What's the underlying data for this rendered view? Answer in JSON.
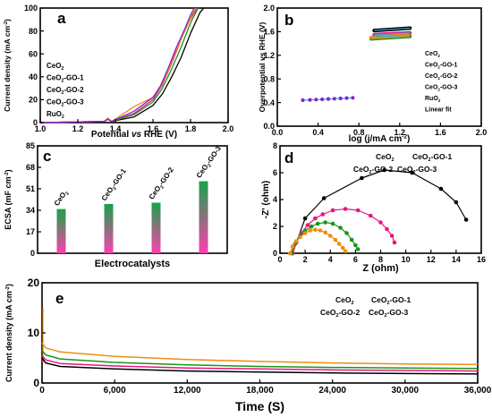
{
  "colors": {
    "CeO2": "#000000",
    "CeO2-GO-1": "#e6157f",
    "CeO2-GO-2": "#16961a",
    "CeO2-GO-3": "#f08c10",
    "RuO2": "#8a1fd6",
    "Linear fit": "#2ab6ea",
    "ecsa_top": "#17a34a",
    "ecsa_bottom": "#ff3fb0"
  },
  "chart_data": [
    {
      "panel": "a",
      "type": "line",
      "xlabel": "Potential vs RHE (V)",
      "ylabel": "Current density (mA cm⁻²)",
      "xlim": [
        1.0,
        2.0
      ],
      "ylim": [
        0,
        100
      ],
      "xticks": [
        "1.0",
        "1.2",
        "1.4",
        "1.6",
        "1.8",
        "2.0"
      ],
      "yticks": [
        "0",
        "20",
        "40",
        "60",
        "80",
        "100"
      ],
      "legend": [
        "CeO2",
        "CeO2-GO-1",
        "CeO2-GO-2",
        "CeO2-GO-3",
        "RuO2"
      ],
      "series": [
        {
          "name": "CeO2",
          "x": [
            1.0,
            1.34,
            1.36,
            1.38,
            1.5,
            1.6,
            1.65,
            1.7,
            1.75,
            1.8,
            1.85,
            1.87
          ],
          "y": [
            0,
            1,
            3,
            1,
            5,
            15,
            25,
            40,
            57,
            78,
            96,
            100
          ]
        },
        {
          "name": "CeO2-GO-1",
          "x": [
            1.0,
            1.34,
            1.36,
            1.38,
            1.5,
            1.6,
            1.65,
            1.7,
            1.75,
            1.78,
            1.82,
            1.84
          ],
          "y": [
            0,
            1,
            3,
            1,
            8,
            20,
            33,
            52,
            73,
            85,
            96,
            100
          ]
        },
        {
          "name": "CeO2-GO-2",
          "x": [
            1.0,
            1.34,
            1.36,
            1.38,
            1.5,
            1.6,
            1.65,
            1.7,
            1.75,
            1.8,
            1.84
          ],
          "y": [
            0,
            1,
            3,
            1,
            7,
            18,
            30,
            47,
            66,
            87,
            100
          ]
        },
        {
          "name": "CeO2-GO-3",
          "x": [
            1.0,
            1.34,
            1.36,
            1.38,
            1.5,
            1.6,
            1.64,
            1.68,
            1.72,
            1.77,
            1.81,
            1.83
          ],
          "y": [
            0,
            1,
            4,
            1,
            14,
            22,
            31,
            45,
            62,
            80,
            95,
            100
          ]
        },
        {
          "name": "RuO2",
          "x": [
            1.0,
            1.34,
            1.36,
            1.38,
            1.5,
            1.6,
            1.64,
            1.68,
            1.72,
            1.77,
            1.8,
            1.82
          ],
          "y": [
            0,
            1,
            3,
            1,
            10,
            22,
            32,
            47,
            64,
            82,
            94,
            100
          ]
        }
      ]
    },
    {
      "panel": "b",
      "type": "line",
      "xlabel": "log (j/mA cm⁻²)",
      "ylabel": "Overpotential vs RHE (V)",
      "xlim": [
        0.0,
        2.0
      ],
      "ylim": [
        0.0,
        2.0
      ],
      "xticks": [
        "0.0",
        "0.4",
        "0.8",
        "1.2",
        "1.6",
        "2.0"
      ],
      "yticks": [
        "0.0",
        "0.4",
        "0.8",
        "1.2",
        "1.6",
        "2.0"
      ],
      "legend": [
        "CeO2",
        "CeO2-GO-1",
        "CeO2-GO-2",
        "CeO2-GO-3",
        "RuO2",
        "Linear fit"
      ],
      "series": [
        {
          "name": "CeO2",
          "x": [
            0.95,
            1.3
          ],
          "y": [
            1.62,
            1.66
          ]
        },
        {
          "name": "CeO2-GO-1",
          "x": [
            0.95,
            1.3
          ],
          "y": [
            1.55,
            1.58
          ]
        },
        {
          "name": "CeO2-GO-2",
          "x": [
            0.92,
            1.3
          ],
          "y": [
            1.48,
            1.52
          ]
        },
        {
          "name": "CeO2-GO-3",
          "x": [
            0.92,
            1.28
          ],
          "y": [
            1.5,
            1.54
          ]
        },
        {
          "name": "RuO2",
          "x": [
            0.25,
            0.32,
            0.38,
            0.44,
            0.5,
            0.56,
            0.62,
            0.68,
            0.74
          ],
          "y": [
            0.44,
            0.445,
            0.45,
            0.455,
            0.46,
            0.465,
            0.47,
            0.475,
            0.48
          ]
        }
      ]
    },
    {
      "panel": "c",
      "type": "bar",
      "xlabel": "Electrocatalysts",
      "ylabel": "ECSA (mF cm⁻²)",
      "ylim": [
        0,
        85
      ],
      "yticks": [
        "0",
        "17",
        "34",
        "51",
        "68",
        "85"
      ],
      "categories": [
        "CeO2",
        "CeO2-GO-1",
        "CeO2-GO-2",
        "CeO2-GO-3"
      ],
      "values": [
        35,
        39,
        40,
        57
      ]
    },
    {
      "panel": "d",
      "type": "scatter",
      "xlabel": "Z (ohm)",
      "ylabel": "-Z' (ohm)",
      "xlim": [
        0,
        16
      ],
      "ylim": [
        0,
        8
      ],
      "xticks": [
        "0",
        "2",
        "4",
        "6",
        "8",
        "10",
        "12",
        "14",
        "16"
      ],
      "yticks": [
        "0",
        "2",
        "4",
        "6",
        "8"
      ],
      "legend": [
        "CeO2",
        "CeO2-GO-1",
        "CeO2-GO-2",
        "CeO2-GO-3"
      ],
      "series": [
        {
          "name": "CeO2",
          "x": [
            1.0,
            2.0,
            3.5,
            6.5,
            8.3,
            10.5,
            12.8,
            14.0,
            14.8
          ],
          "y": [
            0.0,
            2.6,
            4.1,
            5.6,
            6.2,
            6.0,
            4.8,
            3.8,
            2.5
          ]
        },
        {
          "name": "CeO2-GO-1",
          "x": [
            1.0,
            1.3,
            1.7,
            2.2,
            2.8,
            3.4,
            4.2,
            5.2,
            6.2,
            7.2,
            8.0,
            8.5,
            8.9,
            9.1
          ],
          "y": [
            0.0,
            0.8,
            1.5,
            2.1,
            2.6,
            2.9,
            3.2,
            3.3,
            3.2,
            2.8,
            2.3,
            1.8,
            1.3,
            0.8
          ]
        },
        {
          "name": "CeO2-GO-2",
          "x": [
            0.9,
            1.2,
            1.6,
            2.0,
            2.5,
            3.0,
            3.6,
            4.2,
            4.8,
            5.3,
            5.7,
            6.0,
            6.2
          ],
          "y": [
            0.0,
            0.7,
            1.3,
            1.7,
            2.0,
            2.2,
            2.3,
            2.2,
            1.9,
            1.5,
            1.0,
            0.6,
            0.3
          ]
        },
        {
          "name": "CeO2-GO-3",
          "x": [
            0.8,
            1.0,
            1.3,
            1.6,
            2.0,
            2.4,
            2.8,
            3.2,
            3.6,
            4.0,
            4.4,
            4.7,
            5.0,
            5.2
          ],
          "y": [
            0.0,
            0.5,
            0.9,
            1.2,
            1.5,
            1.7,
            1.75,
            1.7,
            1.55,
            1.3,
            1.0,
            0.7,
            0.4,
            0.15
          ]
        }
      ]
    },
    {
      "panel": "e",
      "type": "line",
      "xlabel": "Time (S)",
      "ylabel": "Current density (mA cm⁻²)",
      "xlim": [
        0,
        36000
      ],
      "ylim": [
        0,
        20
      ],
      "xticks": [
        "0",
        "6,000",
        "12,000",
        "18,000",
        "24,000",
        "30,000",
        "36,000"
      ],
      "yticks": [
        "0",
        "10",
        "20"
      ],
      "legend": [
        "CeO2",
        "CeO2-GO-1",
        "CeO2-GO-2",
        "CeO2-GO-3"
      ],
      "series": [
        {
          "name": "CeO2",
          "x": [
            0,
            300,
            1500,
            6000,
            12000,
            18000,
            24000,
            30000,
            36000
          ],
          "y": [
            5.0,
            4.0,
            3.3,
            2.8,
            2.4,
            2.2,
            2.0,
            1.9,
            1.8
          ]
        },
        {
          "name": "CeO2-GO-1",
          "x": [
            0,
            300,
            1500,
            6000,
            12000,
            18000,
            24000,
            30000,
            36000
          ],
          "y": [
            5.5,
            4.6,
            3.9,
            3.4,
            3.0,
            2.8,
            2.6,
            2.5,
            2.4
          ]
        },
        {
          "name": "CeO2-GO-2",
          "x": [
            0,
            300,
            1500,
            6000,
            12000,
            18000,
            24000,
            30000,
            36000
          ],
          "y": [
            6.5,
            5.6,
            4.8,
            4.1,
            3.6,
            3.3,
            3.1,
            3.0,
            2.9
          ]
        },
        {
          "name": "CeO2-GO-3",
          "x": [
            0,
            300,
            1500,
            6000,
            12000,
            18000,
            24000,
            30000,
            36000
          ],
          "y": [
            8.0,
            7.0,
            6.2,
            5.3,
            4.7,
            4.3,
            4.0,
            3.8,
            3.7
          ]
        }
      ]
    }
  ]
}
